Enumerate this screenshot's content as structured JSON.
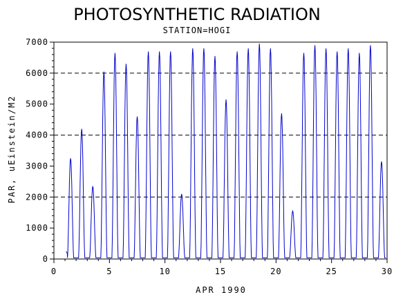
{
  "chart_data": {
    "type": "line",
    "title": "PHOTOSYNTHETIC RADIATION",
    "subtitle": "STATION=HOGI",
    "xlabel": "APR 1990",
    "ylabel": "PAR, uEinstein/M2",
    "xlim": [
      0,
      30
    ],
    "ylim": [
      0,
      7000
    ],
    "x_ticks": [
      0,
      5,
      10,
      15,
      20,
      25,
      30
    ],
    "y_ticks": [
      0,
      1000,
      2000,
      3000,
      4000,
      5000,
      6000,
      7000
    ],
    "reference_lines": [
      2000,
      4000,
      6000
    ],
    "grid": false,
    "series_color": "#0000cc",
    "daily_peaks": [
      {
        "day": 1,
        "peak": 3250
      },
      {
        "day": 2,
        "peak": 4200
      },
      {
        "day": 3,
        "peak": 2350
      },
      {
        "day": 4,
        "peak": 6050
      },
      {
        "day": 5,
        "peak": 6650
      },
      {
        "day": 6,
        "peak": 6300
      },
      {
        "day": 7,
        "peak": 4600
      },
      {
        "day": 8,
        "peak": 6700
      },
      {
        "day": 9,
        "peak": 6700
      },
      {
        "day": 10,
        "peak": 6700
      },
      {
        "day": 11,
        "peak": 2100
      },
      {
        "day": 12,
        "peak": 6800
      },
      {
        "day": 13,
        "peak": 6800
      },
      {
        "day": 14,
        "peak": 6550
      },
      {
        "day": 15,
        "peak": 5150
      },
      {
        "day": 16,
        "peak": 6700
      },
      {
        "day": 17,
        "peak": 6800
      },
      {
        "day": 18,
        "peak": 6950
      },
      {
        "day": 19,
        "peak": 6800
      },
      {
        "day": 20,
        "peak": 4700
      },
      {
        "day": 21,
        "peak": 1550
      },
      {
        "day": 22,
        "peak": 6650
      },
      {
        "day": 23,
        "peak": 6900
      },
      {
        "day": 24,
        "peak": 6800
      },
      {
        "day": 25,
        "peak": 6700
      },
      {
        "day": 26,
        "peak": 6800
      },
      {
        "day": 27,
        "peak": 6650
      },
      {
        "day": 28,
        "peak": 6900
      },
      {
        "day": 29,
        "peak": 3150
      }
    ]
  }
}
